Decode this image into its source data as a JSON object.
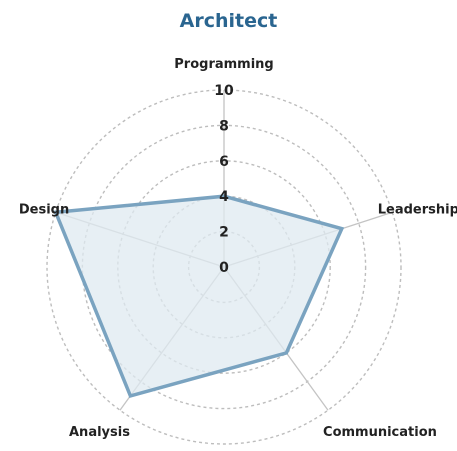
{
  "chart_data": {
    "type": "radar",
    "title": "Architect",
    "axes": [
      "Programming",
      "Leadership",
      "Communication",
      "Analysis",
      "Design"
    ],
    "values": [
      4,
      7,
      6,
      9,
      10
    ],
    "rlim": [
      0,
      10
    ],
    "ticks": [
      0,
      2,
      4,
      6,
      8,
      10
    ],
    "grid": true,
    "colors": {
      "title": "#2a6590",
      "line": "#7aa3c0",
      "fill": "#dfe9f0",
      "grid": "#bdbdbd",
      "spoke": "#c4c4c4"
    }
  }
}
